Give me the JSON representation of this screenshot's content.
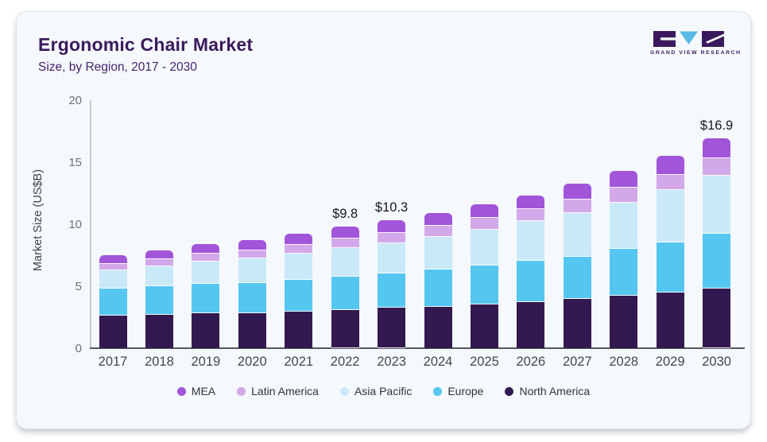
{
  "card": {
    "title": "Ergonomic Chair Market",
    "subtitle": "Size, by Region, 2017 - 2030",
    "logo_text": "GRAND VIEW RESEARCH"
  },
  "colors": {
    "title_text": "#3a1a5c",
    "card_bg": "#f5f8fc",
    "axis_line": "#c7ced6",
    "baseline": "#54575d",
    "ytick_text": "#6d7278",
    "xtick_text": "#43474c",
    "annotation_text": "#15181d",
    "legend_text": "#2e3440",
    "logo_purple": "#3a1a5c",
    "logo_blue": "#58b9e4"
  },
  "chart_data": {
    "type": "bar",
    "stacked": true,
    "title": "Ergonomic Chair Market",
    "subtitle": "Size, by Region, 2017 - 2030",
    "xlabel": "",
    "ylabel": "Market Size (US$B)",
    "ylim": [
      0,
      20
    ],
    "yticks": [
      0,
      5,
      10,
      15,
      20
    ],
    "grid": false,
    "legend_position": "bottom",
    "legend_order": [
      "MEA",
      "Latin America",
      "Asia Pacific",
      "Europe",
      "North America"
    ],
    "categories": [
      "2017",
      "2018",
      "2019",
      "2020",
      "2021",
      "2022",
      "2023",
      "2024",
      "2025",
      "2026",
      "2027",
      "2028",
      "2029",
      "2030"
    ],
    "series": [
      {
        "name": "North America",
        "color": "#32194f",
        "values": [
          2.6,
          2.7,
          2.8,
          2.85,
          2.95,
          3.1,
          3.3,
          3.35,
          3.55,
          3.7,
          3.95,
          4.2,
          4.5,
          4.8
        ]
      },
      {
        "name": "Europe",
        "color": "#55c6f0",
        "values": [
          2.2,
          2.3,
          2.4,
          2.4,
          2.55,
          2.7,
          2.75,
          3.0,
          3.1,
          3.35,
          3.45,
          3.8,
          4.0,
          4.4
        ]
      },
      {
        "name": "Asia Pacific",
        "color": "#c9e9f8",
        "values": [
          1.5,
          1.6,
          1.8,
          2.0,
          2.15,
          2.3,
          2.4,
          2.65,
          2.9,
          3.2,
          3.5,
          3.75,
          4.25,
          4.7
        ]
      },
      {
        "name": "Latin America",
        "color": "#d3a8ea",
        "values": [
          0.5,
          0.6,
          0.6,
          0.65,
          0.7,
          0.75,
          0.85,
          0.9,
          0.95,
          1.0,
          1.1,
          1.2,
          1.25,
          1.4
        ]
      },
      {
        "name": "MEA",
        "color": "#a155d8",
        "values": [
          0.7,
          0.7,
          0.8,
          0.8,
          0.85,
          0.95,
          1.0,
          1.0,
          1.1,
          1.05,
          1.3,
          1.35,
          1.5,
          1.6
        ]
      }
    ],
    "totals": [
      7.5,
      7.9,
      8.4,
      8.7,
      9.2,
      9.8,
      10.3,
      10.9,
      11.6,
      12.3,
      13.3,
      14.3,
      15.5,
      16.9
    ],
    "annotations": {
      "2022": "$9.8",
      "2023": "$10.3",
      "2030": "$16.9"
    }
  }
}
